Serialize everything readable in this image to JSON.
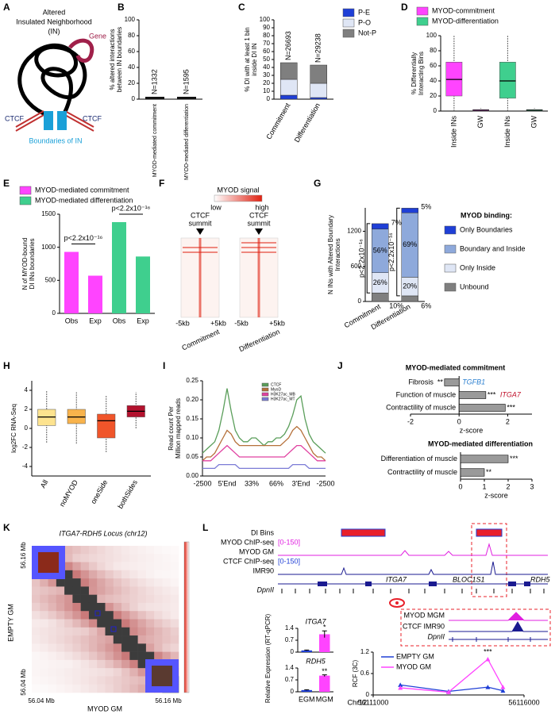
{
  "panel_labels": [
    "A",
    "B",
    "C",
    "D",
    "E",
    "F",
    "G",
    "H",
    "I",
    "J",
    "K",
    "L"
  ],
  "diagram_a": {
    "title": [
      "Altered",
      "Insulated Neighborhood",
      "(IN)"
    ],
    "gene": "Gene",
    "ctcf": [
      "CTCF",
      "CTCF"
    ],
    "boundaries": "Boundaries of IN"
  },
  "heatmap_f": {
    "signal": "MYOD signal",
    "low": "low",
    "high": "high",
    "summits": [
      [
        "CTCF",
        "summit"
      ],
      [
        "CTCF",
        "summit"
      ]
    ],
    "ticks": [
      "-5kb",
      "+5kb",
      "-5kb",
      "+5kb"
    ],
    "samples": [
      "Commitment",
      "Differentiation"
    ]
  },
  "hic_k": {
    "title": "ITGA7-RDH5 Locus (chr12)",
    "y_label": "EMPTY GM",
    "x_label": "MYOD GM",
    "y_ticks": [
      "56.16 Mb",
      "56.04 Mb"
    ],
    "x_ticks": [
      "56.04 Mb",
      "56.16 Mb"
    ]
  },
  "tracks_l": {
    "di_bins": "DI Bins",
    "myod_chip": "MYOD ChIP-seq",
    "myod_range": "[0-150]",
    "myod_sample": "MYOD GM",
    "ctcf_chip": "CTCF ChIP-seq",
    "ctcf_range": "[0-150]",
    "ctcf_sample": "IMR90",
    "dpn": "DpnII",
    "genes": [
      "ITGA7",
      "BLOC1S1",
      "RDH5"
    ],
    "zoom": [
      "MYOD MGM",
      "CTCF IMR90",
      "DpnII"
    ],
    "expression_label": "Relative Expression (RT-qPCR)"
  },
  "chart_data": [
    {
      "type": "bar",
      "y_label": [
        "% altered interactions",
        "between IN boundaries"
      ],
      "categories": [
        "MYOD-mediated commitment",
        "MYOD-mediated differentiation"
      ],
      "values": [
        3,
        3
      ],
      "color": "#111111",
      "bar_annotations": [
        "N=1332",
        "N=1595"
      ],
      "ylim": [
        0,
        100
      ],
      "yticks": [
        0,
        20,
        40,
        60,
        80,
        100
      ]
    },
    {
      "type": "stacked_bar",
      "y_label": [
        "% DI with at least 1 bin",
        "inside DI IN"
      ],
      "categories": [
        "Commitment",
        "Differentiation"
      ],
      "series": [
        {
          "name": "P-E",
          "color": "#1f3fd6",
          "values": [
            5,
            2
          ]
        },
        {
          "name": "P-O",
          "color": "#dfe6f5",
          "values": [
            20,
            18
          ]
        },
        {
          "name": "Not-P",
          "color": "#7f7f7f",
          "values": [
            21,
            23
          ]
        }
      ],
      "bar_annotations": [
        "N=26693",
        "N=29238"
      ],
      "ylim": [
        0,
        100
      ],
      "yticks": [
        0,
        10,
        20,
        30,
        40,
        50,
        60,
        70,
        80,
        90,
        100
      ]
    },
    {
      "type": "box",
      "y_label": [
        "% Differentially",
        "Interacting Bins"
      ],
      "categories": [
        "Inside INs",
        "GW",
        "Inside INs",
        "GW"
      ],
      "colors": [
        "#ff44ff",
        "#ff44ff",
        "#3fcf8e",
        "#3fcf8e"
      ],
      "boxes": [
        {
          "min": 0,
          "q1": 20,
          "median": 42,
          "q3": 65,
          "max": 100
        },
        {
          "min": 0,
          "q1": 0,
          "median": 1,
          "q3": 2,
          "max": 4
        },
        {
          "min": 0,
          "q1": 17,
          "median": 40,
          "q3": 65,
          "max": 100
        },
        {
          "min": 0,
          "q1": 0,
          "median": 1,
          "q3": 2,
          "max": 4
        }
      ],
      "legend": [
        {
          "name": "MYOD-commitment",
          "color": "#ff44ff"
        },
        {
          "name": "MYOD-differentiation",
          "color": "#3fcf8e"
        }
      ],
      "ylim": [
        0,
        100
      ],
      "yticks": [
        0,
        20,
        40,
        60,
        80,
        100
      ]
    },
    {
      "type": "bar",
      "y_label": [
        "N of MYOD-bound",
        "DI INs boundaries"
      ],
      "categories": [
        "Obs",
        "Exp",
        "Obs",
        "Exp"
      ],
      "values": [
        930,
        570,
        1380,
        860
      ],
      "colors": [
        "#ff44ff",
        "#ff44ff",
        "#3fcf8e",
        "#3fcf8e"
      ],
      "legend": [
        {
          "name": "MYOD-mediated commitment",
          "color": "#ff44ff"
        },
        {
          "name": "MYOD-mediated differentiation",
          "color": "#3fcf8e"
        }
      ],
      "comparisons": [
        "p<2.2x10⁻¹⁶",
        "p<2.2x10⁻¹⁶"
      ],
      "ylim": [
        0,
        1500
      ],
      "yticks": [
        0,
        500,
        1000,
        1500
      ]
    },
    {
      "type": "stacked_bar",
      "y_label": [
        "N INs with Altered Boundary",
        "Interactions"
      ],
      "categories": [
        "Commitment",
        "Differentiation"
      ],
      "series": [
        {
          "name": "Unbound",
          "color": "#7f7f7f",
          "values": [
            146,
            96
          ],
          "labels": [
            "10%",
            "6%"
          ]
        },
        {
          "name": "Only Inside",
          "color": "#dfe6f5",
          "values": [
            346,
            319
          ],
          "labels": [
            "26%",
            "20%"
          ]
        },
        {
          "name": "Boundary and Inside",
          "color": "#8ea9db",
          "values": [
            745,
            1100
          ],
          "labels": [
            "56%",
            "69%"
          ]
        },
        {
          "name": "Only Boundaries",
          "color": "#1f3fd6",
          "values": [
            93,
            80
          ],
          "labels": [
            "7%",
            "5%"
          ]
        }
      ],
      "legend_title": "MYOD binding:",
      "bar_annotations_left": [
        "p<2.2x10⁻¹⁶",
        "p<2.2x10⁻¹⁶"
      ],
      "ylim": [
        0,
        1600
      ],
      "yticks": [
        0,
        600,
        1200
      ]
    },
    {
      "type": "box",
      "y_label": [
        "log2FC RNA-Seq"
      ],
      "categories": [
        "All",
        "noMYOD",
        "oneSide",
        "bothSides"
      ],
      "colors": [
        "#fde38f",
        "#f8b34c",
        "#f0552a",
        "#b3122e"
      ],
      "boxes": [
        {
          "min": -1.5,
          "q1": 0.3,
          "median": 1.2,
          "q3": 2.0,
          "max": 4.0
        },
        {
          "min": -1.6,
          "q1": 0.5,
          "median": 1.2,
          "q3": 2.0,
          "max": 3.8
        },
        {
          "min": -2.5,
          "q1": -1.0,
          "median": 0.8,
          "q3": 1.5,
          "max": 3.5
        },
        {
          "min": 0.0,
          "q1": 1.2,
          "median": 1.8,
          "q3": 2.4,
          "max": 3.8
        }
      ],
      "ylim": [
        -5,
        5
      ],
      "yticks": [
        -4,
        -2,
        0,
        2,
        4
      ]
    },
    {
      "type": "line",
      "y_label": [
        "Read count Per",
        "Million mapped reads"
      ],
      "categories": [
        "-2500",
        null,
        null,
        null,
        null,
        null,
        "5'End",
        null,
        null,
        null,
        null,
        null,
        "33%",
        null,
        null,
        null,
        null,
        null,
        "66%",
        null,
        null,
        null,
        null,
        null,
        "3'End",
        null,
        null,
        null,
        null,
        null,
        "-2500"
      ],
      "series": [
        {
          "name": "CTCF",
          "color": "#5a9e5a",
          "values": [
            0.06,
            0.07,
            0.08,
            0.09,
            0.12,
            0.17,
            0.23,
            0.17,
            0.12,
            0.1,
            0.09,
            0.09,
            0.1,
            0.1,
            0.09,
            0.08,
            0.09,
            0.09,
            0.1,
            0.1,
            0.11,
            0.13,
            0.16,
            0.2,
            0.21,
            0.15,
            0.11,
            0.09,
            0.08,
            0.07,
            0.06
          ]
        },
        {
          "name": "MyoD",
          "color": "#b5703a",
          "values": [
            0.04,
            0.05,
            0.05,
            0.06,
            0.08,
            0.1,
            0.12,
            0.11,
            0.09,
            0.08,
            0.08,
            0.08,
            0.08,
            0.08,
            0.08,
            0.08,
            0.08,
            0.08,
            0.08,
            0.08,
            0.09,
            0.1,
            0.12,
            0.13,
            0.12,
            0.1,
            0.08,
            0.06,
            0.05,
            0.05,
            0.04
          ]
        },
        {
          "name": "H3K27ac_MB",
          "color": "#e040a0",
          "values": [
            0.04,
            0.04,
            0.04,
            0.05,
            0.06,
            0.07,
            0.08,
            0.07,
            0.06,
            0.05,
            0.05,
            0.05,
            0.05,
            0.05,
            0.05,
            0.05,
            0.05,
            0.05,
            0.05,
            0.05,
            0.05,
            0.06,
            0.07,
            0.08,
            0.08,
            0.07,
            0.06,
            0.05,
            0.04,
            0.04,
            0.04
          ]
        },
        {
          "name": "H3K27ac_MT",
          "color": "#7b7bd6",
          "values": [
            0.02,
            0.02,
            0.02,
            0.02,
            0.03,
            0.03,
            0.03,
            0.03,
            0.03,
            0.02,
            0.02,
            0.02,
            0.02,
            0.02,
            0.02,
            0.02,
            0.02,
            0.02,
            0.02,
            0.02,
            0.02,
            0.02,
            0.03,
            0.03,
            0.03,
            0.03,
            0.02,
            0.02,
            0.02,
            0.02,
            0.02
          ]
        }
      ],
      "ylim": [
        0,
        0.25
      ],
      "yticks": [
        {
          "value": 0,
          "label": "0.00"
        },
        0.05,
        {
          "value": 0.1,
          "label": "0.10"
        },
        0.15,
        {
          "value": 0.2,
          "label": "0.20"
        },
        0.25
      ]
    },
    {
      "type": "hbar",
      "title": "MYOD-mediated commitment",
      "categories": [
        "Fibrosis",
        "Function of muscle",
        "Contractility of muscle"
      ],
      "values": [
        -0.6,
        1.1,
        1.9
      ],
      "stars": [
        "**",
        "***",
        "***"
      ],
      "genes": [
        "TGFB1",
        "ITGA7",
        null
      ],
      "gene_colors": [
        "#2a7fd0",
        "#c0102a",
        null
      ],
      "x_label": "z-score",
      "xlim": [
        -2,
        3
      ],
      "xticks": [
        -2,
        0,
        2
      ]
    },
    {
      "type": "hbar",
      "title": "MYOD-mediated differentiation",
      "categories": [
        "Differentiation of muscle",
        "Contractility of muscle"
      ],
      "values": [
        2.0,
        1.0
      ],
      "stars": [
        "***",
        "**"
      ],
      "x_label": "z-score",
      "xlim": [
        0,
        3
      ],
      "xticks": [
        0,
        1,
        2,
        3
      ]
    },
    {
      "type": "bar",
      "title": "ITGA7",
      "categories": [
        null,
        null
      ],
      "values": [
        0.1,
        1.05
      ],
      "errors": [
        0.02,
        0.2
      ],
      "stars": [
        null,
        "*"
      ],
      "colors": [
        "#1f3fd6",
        "#ff44ff"
      ],
      "ylim": [
        0,
        1.4
      ],
      "yticks": [
        0,
        0.7,
        1.4
      ]
    },
    {
      "type": "bar",
      "title": "RDH5",
      "categories": [
        "EGM",
        "MGM"
      ],
      "values": [
        0.1,
        0.95
      ],
      "errors": [
        0.02,
        0.05
      ],
      "stars": [
        null,
        "**"
      ],
      "colors": [
        "#1f3fd6",
        "#ff44ff"
      ],
      "ylim": [
        0,
        1.4
      ],
      "yticks": [
        0,
        0.7,
        1.4
      ]
    },
    {
      "type": "line",
      "y_label": [
        "RCF (3C)"
      ],
      "x_label": "Chr12",
      "x": [
        56111900,
        56113500,
        56114800,
        56115300
      ],
      "series": [
        {
          "name": "EMPTY GM",
          "color": "#1f3fd6",
          "values": [
            0.28,
            0.1,
            0.22,
            0.12
          ]
        },
        {
          "name": "MYOD GM",
          "color": "#ff44ff",
          "values": [
            0.2,
            0.08,
            1.0,
            0.22
          ],
          "stars": [
            null,
            null,
            "***",
            null
          ]
        }
      ],
      "xlim": [
        56111000,
        56116000
      ],
      "xticks": [
        56111000,
        56116000
      ],
      "ylim": [
        0,
        1.2
      ],
      "yticks": [
        0,
        0.6,
        1.2
      ]
    }
  ]
}
